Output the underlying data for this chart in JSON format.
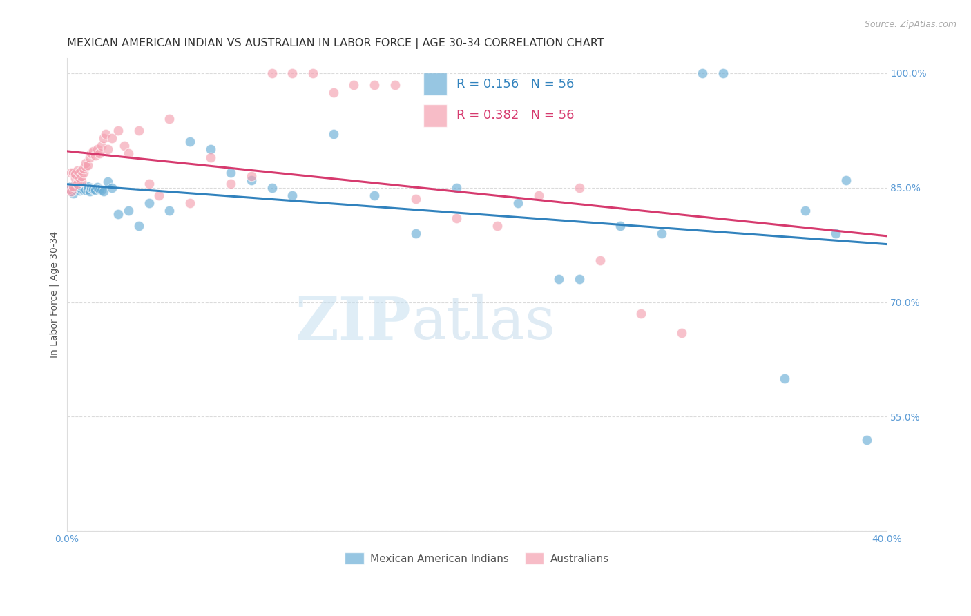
{
  "title": "MEXICAN AMERICAN INDIAN VS AUSTRALIAN IN LABOR FORCE | AGE 30-34 CORRELATION CHART",
  "source": "Source: ZipAtlas.com",
  "ylabel": "In Labor Force | Age 30-34",
  "xlim": [
    0.0,
    0.4
  ],
  "ylim": [
    0.4,
    1.02
  ],
  "yticks": [
    0.55,
    0.7,
    0.85,
    1.0
  ],
  "yticklabels": [
    "55.0%",
    "70.0%",
    "85.0%",
    "100.0%"
  ],
  "xticks": [
    0.0,
    0.4
  ],
  "xticklabels": [
    "0.0%",
    "40.0%"
  ],
  "blue_R": 0.156,
  "blue_N": 56,
  "pink_R": 0.382,
  "pink_N": 56,
  "blue_color": "#6baed6",
  "pink_color": "#f4a0b0",
  "blue_line_color": "#3182bd",
  "pink_line_color": "#d63a6e",
  "grid_color": "#cccccc",
  "axis_color": "#5b9bd5",
  "title_color": "#333333",
  "watermark_zip": "ZIP",
  "watermark_atlas": "atlas",
  "legend_labels": [
    "Mexican American Indians",
    "Australians"
  ],
  "title_fontsize": 11.5,
  "source_fontsize": 9,
  "label_fontsize": 10,
  "tick_fontsize": 10,
  "legend_fontsize": 11,
  "blue_x": [
    0.001,
    0.002,
    0.002,
    0.003,
    0.003,
    0.004,
    0.004,
    0.005,
    0.005,
    0.006,
    0.006,
    0.007,
    0.007,
    0.008,
    0.008,
    0.009,
    0.009,
    0.01,
    0.01,
    0.011,
    0.012,
    0.013,
    0.014,
    0.015,
    0.016,
    0.017,
    0.018,
    0.02,
    0.022,
    0.025,
    0.03,
    0.035,
    0.04,
    0.05,
    0.06,
    0.07,
    0.08,
    0.09,
    0.1,
    0.11,
    0.13,
    0.15,
    0.17,
    0.19,
    0.22,
    0.24,
    0.25,
    0.27,
    0.29,
    0.31,
    0.32,
    0.35,
    0.36,
    0.375,
    0.38,
    0.39
  ],
  "blue_y": [
    0.848,
    0.845,
    0.852,
    0.843,
    0.85,
    0.847,
    0.851,
    0.849,
    0.853,
    0.846,
    0.851,
    0.848,
    0.852,
    0.847,
    0.851,
    0.848,
    0.847,
    0.852,
    0.848,
    0.845,
    0.85,
    0.848,
    0.847,
    0.851,
    0.848,
    0.847,
    0.845,
    0.858,
    0.85,
    0.815,
    0.82,
    0.8,
    0.83,
    0.82,
    0.91,
    0.9,
    0.87,
    0.86,
    0.85,
    0.84,
    0.92,
    0.84,
    0.79,
    0.85,
    0.83,
    0.73,
    0.73,
    0.8,
    0.79,
    1.0,
    1.0,
    0.6,
    0.82,
    0.79,
    0.86,
    0.52
  ],
  "pink_x": [
    0.001,
    0.002,
    0.002,
    0.003,
    0.003,
    0.004,
    0.004,
    0.005,
    0.005,
    0.006,
    0.006,
    0.007,
    0.007,
    0.007,
    0.008,
    0.008,
    0.009,
    0.009,
    0.01,
    0.011,
    0.012,
    0.013,
    0.014,
    0.015,
    0.016,
    0.017,
    0.018,
    0.019,
    0.02,
    0.022,
    0.025,
    0.028,
    0.03,
    0.035,
    0.04,
    0.045,
    0.05,
    0.06,
    0.07,
    0.08,
    0.09,
    0.1,
    0.11,
    0.12,
    0.13,
    0.14,
    0.15,
    0.16,
    0.17,
    0.19,
    0.21,
    0.23,
    0.25,
    0.26,
    0.28,
    0.3
  ],
  "pink_y": [
    0.848,
    0.845,
    0.87,
    0.852,
    0.87,
    0.862,
    0.868,
    0.872,
    0.855,
    0.863,
    0.87,
    0.858,
    0.865,
    0.872,
    0.87,
    0.875,
    0.878,
    0.882,
    0.88,
    0.89,
    0.895,
    0.898,
    0.892,
    0.9,
    0.895,
    0.905,
    0.915,
    0.92,
    0.9,
    0.915,
    0.925,
    0.905,
    0.895,
    0.925,
    0.855,
    0.84,
    0.94,
    0.83,
    0.89,
    0.855,
    0.865,
    1.0,
    1.0,
    1.0,
    0.975,
    0.985,
    0.985,
    0.985,
    0.835,
    0.81,
    0.8,
    0.84,
    0.85,
    0.755,
    0.685,
    0.66
  ]
}
